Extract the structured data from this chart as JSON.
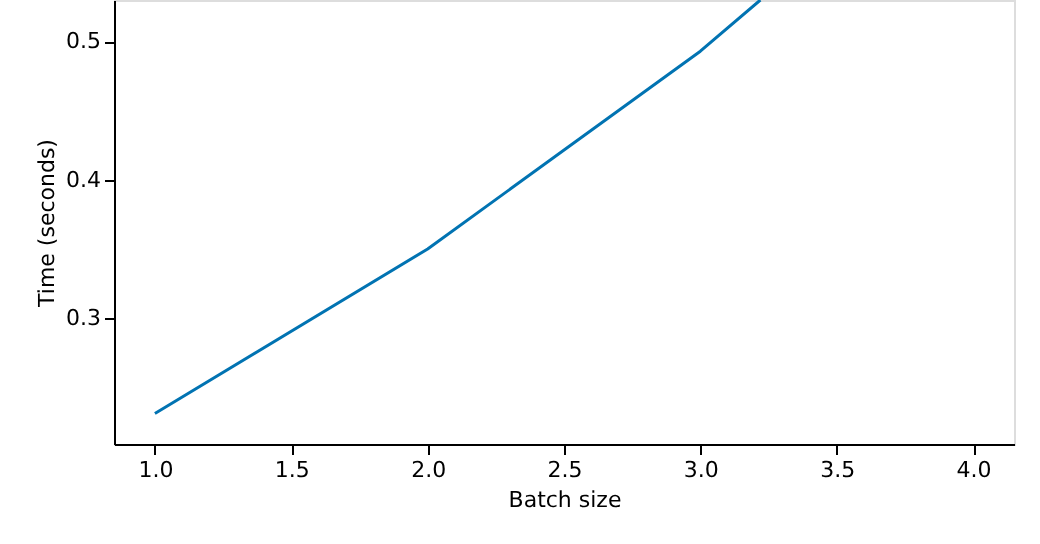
{
  "chart_data": {
    "type": "line",
    "xlabel": "Batch size",
    "ylabel": "Time (seconds)",
    "x": [
      1.0,
      2.0,
      3.0,
      3.22
    ],
    "series": [
      {
        "color": "#0173b2",
        "values": [
          0.231,
          0.35,
          0.493,
          0.53
        ]
      }
    ],
    "xlim": [
      0.85,
      4.15
    ],
    "xticks": [
      {
        "value": 1,
        "label": "1.0"
      },
      1.5,
      {
        "value": 2,
        "label": "2.0"
      },
      2.5,
      {
        "value": 3,
        "label": "3.0"
      },
      3.5,
      {
        "value": 4,
        "label": "4.0"
      }
    ],
    "ylim": [
      0.209,
      0.53
    ],
    "yticks": [
      0.3,
      0.4,
      0.5
    ],
    "grid": false,
    "marker": "none",
    "line_style": "solid"
  }
}
